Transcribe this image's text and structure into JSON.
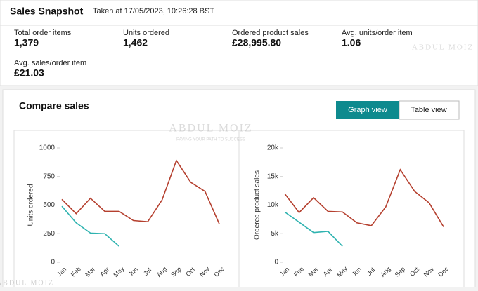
{
  "header": {
    "title": "Sales Snapshot",
    "timestamp": "Taken at 17/05/2023, 10:26:28 BST"
  },
  "metrics": [
    {
      "label": "Total order items",
      "value": "1,379"
    },
    {
      "label": "Units ordered",
      "value": "1,462"
    },
    {
      "label": "Ordered product sales",
      "value": "£28,995.80"
    },
    {
      "label": "Avg. units/order item",
      "value": "1.06"
    },
    {
      "label": "Avg. sales/order item",
      "value": "£21.03"
    }
  ],
  "compare": {
    "title": "Compare sales",
    "buttons": [
      "Graph view",
      "Table view"
    ]
  },
  "watermark": {
    "name": "ABDUL MOIZ",
    "tagline": "PAVING YOUR PATH TO SUCCESS"
  },
  "chart_data": [
    {
      "type": "line",
      "y_label": "Units ordered",
      "categories": [
        "Jan",
        "Feb",
        "Mar",
        "Apr",
        "May",
        "Jun",
        "Jul",
        "Aug",
        "Sep",
        "Oct",
        "Nov",
        "Dec"
      ],
      "ylim": [
        0,
        1000
      ],
      "yticks": [
        0,
        250,
        500,
        750,
        1000
      ],
      "series": [
        {
          "color": "#b5402f",
          "values": [
            550,
            425,
            560,
            445,
            445,
            365,
            355,
            545,
            890,
            700,
            620,
            335
          ]
        },
        {
          "color": "#2fb3b0",
          "values": [
            490,
            345,
            255,
            250,
            140,
            null,
            null,
            null,
            null,
            null,
            null,
            null
          ]
        }
      ]
    },
    {
      "type": "line",
      "y_label": "Ordered product sales",
      "categories": [
        "Jan",
        "Feb",
        "Mar",
        "Apr",
        "May",
        "Jun",
        "Jul",
        "Aug",
        "Sep",
        "Oct",
        "Nov",
        "Dec"
      ],
      "ylim": [
        0,
        20000
      ],
      "yticks": [
        0,
        {
          "value": 5000,
          "label": "5k"
        },
        {
          "value": 10000,
          "label": "10k"
        },
        {
          "value": 15000,
          "label": "15k"
        },
        {
          "value": 20000,
          "label": "20k"
        }
      ],
      "series": [
        {
          "color": "#b5402f",
          "values": [
            12000,
            8700,
            11300,
            8900,
            8800,
            6900,
            6400,
            9700,
            16200,
            12400,
            10400,
            6200
          ]
        },
        {
          "color": "#2fb3b0",
          "values": [
            8800,
            7000,
            5200,
            5400,
            2800,
            null,
            null,
            null,
            null,
            null,
            null,
            null
          ]
        }
      ]
    }
  ]
}
